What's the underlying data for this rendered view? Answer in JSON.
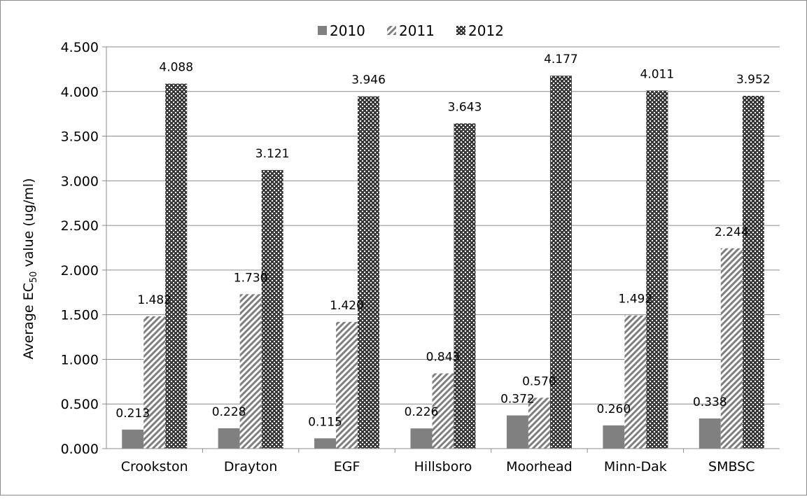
{
  "chart_data": {
    "type": "bar",
    "title": "",
    "xlabel": "",
    "ylabel": {
      "prefix": "Average EC",
      "subscript": "50",
      "suffix": " value (ug/ml)"
    },
    "categories": [
      "Crookston",
      "Drayton",
      "EGF",
      "Hillsboro",
      "Moorhead",
      "Minn-Dak",
      "SMBSC"
    ],
    "series": [
      {
        "name": "2010",
        "pattern": "solid",
        "color": "#808080",
        "values": [
          0.213,
          0.228,
          0.115,
          0.226,
          0.372,
          0.26,
          0.338
        ],
        "labels": [
          "0.213",
          "0.228",
          "0.115",
          "0.226",
          "0.372",
          "0.260",
          "0.338"
        ]
      },
      {
        "name": "2011",
        "pattern": "diagonal-stripes",
        "color": "#7f7f7f",
        "values": [
          1.482,
          1.73,
          1.42,
          0.843,
          0.57,
          1.492,
          2.244
        ],
        "labels": [
          "1.482",
          "1.730",
          "1.420",
          "0.843",
          "0.570",
          "1.492",
          "2.244"
        ]
      },
      {
        "name": "2012",
        "pattern": "dotted-grid",
        "color": "#404040",
        "values": [
          4.088,
          3.121,
          3.946,
          3.643,
          4.177,
          4.011,
          3.952
        ],
        "labels": [
          "4.088",
          "3.121",
          "3.946",
          "3.643",
          "4.177",
          "4.011",
          "3.952"
        ]
      }
    ],
    "ylim": [
      0,
      4.5
    ],
    "yticks": [
      "0.000",
      "0.500",
      "1.000",
      "1.500",
      "2.000",
      "2.500",
      "3.000",
      "3.500",
      "4.000",
      "4.500"
    ],
    "grid": true,
    "legend": "top-center"
  }
}
